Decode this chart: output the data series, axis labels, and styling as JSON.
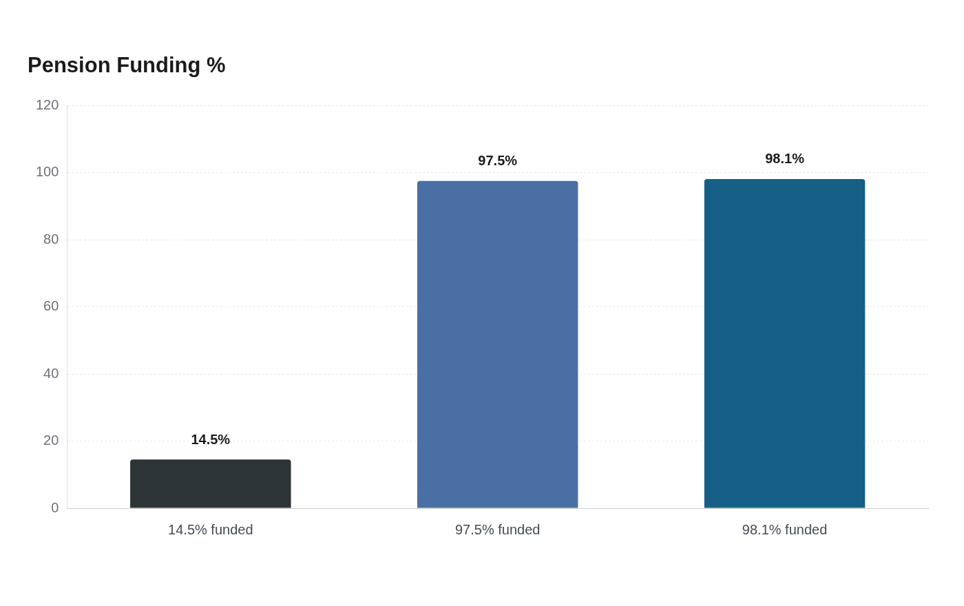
{
  "chart_data": {
    "type": "bar",
    "title": "Pension Funding %",
    "categories": [
      "14.5% funded",
      "97.5% funded",
      "98.1% funded"
    ],
    "values": [
      14.5,
      97.5,
      98.1
    ],
    "colors": [
      "#2d3436",
      "#4a6fa5",
      "#166088"
    ],
    "value_labels": [
      "14.5%",
      "97.5%",
      "98.1%"
    ],
    "ylim": [
      0,
      120
    ],
    "yticks": [
      0,
      20,
      40,
      60,
      80,
      100,
      120
    ],
    "grid": "y",
    "legend": false
  }
}
